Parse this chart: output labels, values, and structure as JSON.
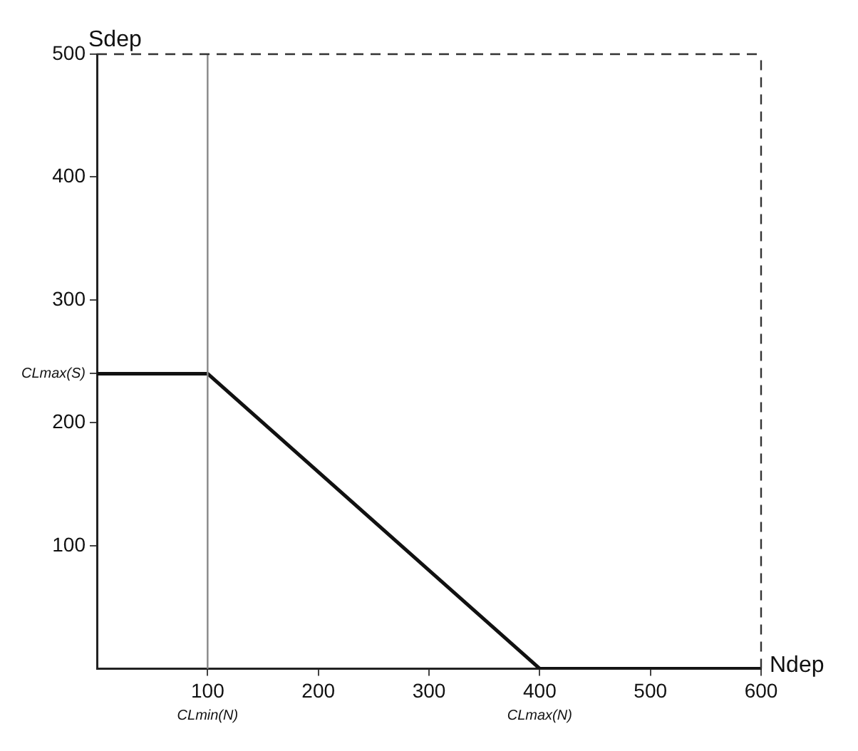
{
  "chart_data": {
    "type": "line",
    "xlabel": "Ndep",
    "ylabel": "Sdep",
    "x": [
      0,
      100,
      400,
      600
    ],
    "series": [
      {
        "color": "#111111",
        "values": [
          240,
          240,
          0,
          0
        ]
      }
    ],
    "xlim": [
      0,
      600
    ],
    "ylim": [
      0,
      500
    ],
    "xticks": [
      100,
      200,
      300,
      400,
      500,
      600
    ],
    "yticks": [
      100,
      {
        "value": 240,
        "label": "CLmax(S)"
      },
      200,
      300,
      400,
      500
    ],
    "ref_lines": [
      {
        "axis": "x",
        "value": 100,
        "color": "#888888",
        "line_style": "solid"
      },
      {
        "axis": "y",
        "value": 500,
        "color": "#333333",
        "line_style": "dashed"
      },
      {
        "axis": "x",
        "value": 600,
        "color": "#333333",
        "line_style": "dashed"
      }
    ],
    "annotations": [
      {
        "text": "CLmin(N)",
        "x": 100,
        "y": 0
      },
      {
        "text": "CLmax(N)",
        "x": 400,
        "y": 0
      }
    ],
    "grid": false,
    "legend": false,
    "marker": "none",
    "line_style": "solid"
  }
}
